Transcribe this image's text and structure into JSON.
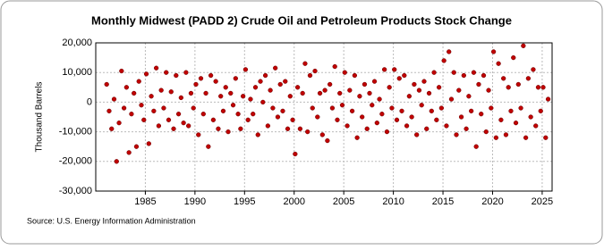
{
  "chart_data": {
    "type": "scatter",
    "title": "Monthly Midwest (PADD 2) Crude Oil and Petroleum Products Stock Change",
    "y_label": "Thousand Barrels",
    "source": "Source: U.S. Energy Information Administration",
    "color": "#c00000",
    "grid": true,
    "xlim": [
      1980,
      2026
    ],
    "xticks": [
      1985,
      1990,
      1995,
      2000,
      2005,
      2010,
      2015,
      2020,
      2025
    ],
    "ylim": [
      -30000,
      20000
    ],
    "yticks": [
      {
        "value": -30000,
        "label": "-30,000"
      },
      {
        "value": -20000,
        "label": "-20,000"
      },
      {
        "value": -10000,
        "label": "-10,000"
      },
      0,
      {
        "value": 10000,
        "label": "10,000"
      },
      {
        "value": 20000,
        "label": "20,000"
      }
    ],
    "x": [
      1981.1,
      1981.35,
      1981.6,
      1981.85,
      1982.1,
      1982.35,
      1982.6,
      1982.85,
      1983.1,
      1983.35,
      1983.6,
      1983.85,
      1984.1,
      1984.35,
      1984.6,
      1984.85,
      1985.1,
      1985.35,
      1985.6,
      1985.85,
      1986.1,
      1986.35,
      1986.6,
      1986.85,
      1987.1,
      1987.35,
      1987.6,
      1987.85,
      1988.1,
      1988.35,
      1988.6,
      1988.85,
      1989.1,
      1989.35,
      1989.6,
      1989.85,
      1990.1,
      1990.35,
      1990.6,
      1990.85,
      1991.1,
      1991.35,
      1991.6,
      1991.85,
      1992.1,
      1992.35,
      1992.6,
      1992.85,
      1993.1,
      1993.35,
      1993.6,
      1993.85,
      1994.1,
      1994.35,
      1994.6,
      1994.85,
      1995.1,
      1995.35,
      1995.6,
      1995.85,
      1996.1,
      1996.35,
      1996.6,
      1996.85,
      1997.1,
      1997.35,
      1997.6,
      1997.85,
      1998.1,
      1998.35,
      1998.6,
      1998.85,
      1999.1,
      1999.35,
      1999.6,
      1999.85,
      2000.1,
      2000.35,
      2000.6,
      2000.85,
      2001.1,
      2001.35,
      2001.6,
      2001.85,
      2002.1,
      2002.35,
      2002.6,
      2002.85,
      2003.1,
      2003.35,
      2003.6,
      2003.85,
      2004.1,
      2004.35,
      2004.6,
      2004.85,
      2005.1,
      2005.35,
      2005.6,
      2005.85,
      2006.1,
      2006.35,
      2006.6,
      2006.85,
      2007.1,
      2007.35,
      2007.6,
      2007.85,
      2008.1,
      2008.35,
      2008.6,
      2008.85,
      2009.1,
      2009.35,
      2009.6,
      2009.85,
      2010.1,
      2010.35,
      2010.6,
      2010.85,
      2011.1,
      2011.35,
      2011.6,
      2011.85,
      2012.1,
      2012.35,
      2012.6,
      2012.85,
      2013.1,
      2013.35,
      2013.6,
      2013.85,
      2014.1,
      2014.35,
      2014.6,
      2014.85,
      2015.1,
      2015.35,
      2015.6,
      2015.85,
      2016.1,
      2016.35,
      2016.6,
      2016.85,
      2017.1,
      2017.35,
      2017.6,
      2017.85,
      2018.1,
      2018.35,
      2018.6,
      2018.85,
      2019.1,
      2019.35,
      2019.6,
      2019.85,
      2020.1,
      2020.35,
      2020.6,
      2020.85,
      2021.1,
      2021.35,
      2021.6,
      2021.85,
      2022.1,
      2022.35,
      2022.6,
      2022.85,
      2023.1,
      2023.35,
      2023.6,
      2023.85,
      2024.1,
      2024.35,
      2024.6,
      2024.85,
      2025.1,
      2025.35,
      2025.6
    ],
    "values": [
      6000,
      -3000,
      -9000,
      1000,
      -20000,
      -7000,
      10500,
      -2000,
      5000,
      -17000,
      -4000,
      3000,
      -15000,
      7000,
      -1000,
      -6000,
      9500,
      -14000,
      2000,
      -3000,
      11500,
      -8000,
      4000,
      -2000,
      10000,
      -6000,
      3500,
      -9000,
      9000,
      -4000,
      1500,
      -7000,
      10000,
      -8000,
      3000,
      -2000,
      6000,
      -11000,
      8000,
      -4000,
      3000,
      -15000,
      9000,
      -6000,
      7000,
      -9000,
      2000,
      -3000,
      5000,
      -10000,
      3000,
      -1000,
      8000,
      -4000,
      -9000,
      2000,
      11000,
      -6000,
      1000,
      -4000,
      5000,
      -11000,
      7000,
      0,
      9000,
      -8000,
      4000,
      -2000,
      11500,
      -5000,
      6000,
      -3000,
      7000,
      -9000,
      2000,
      -6000,
      -17500,
      5000,
      -9000,
      3000,
      13000,
      -10000,
      9000,
      -2000,
      10500,
      -5000,
      3000,
      -11000,
      4000,
      -13000,
      6000,
      -2000,
      12000,
      -6000,
      3000,
      -1000,
      10000,
      -8000,
      4000,
      -3000,
      9000,
      -12000,
      2000,
      -5000,
      6000,
      -9000,
      3000,
      -1000,
      7000,
      -7000,
      1000,
      -4000,
      11000,
      -10000,
      5000,
      -2000,
      11000,
      -6000,
      8000,
      -3000,
      9000,
      -8000,
      2000,
      -5000,
      6000,
      -11000,
      4000,
      -1000,
      7000,
      -9000,
      3000,
      -3000,
      10000,
      -6000,
      5000,
      -2000,
      14000,
      -8000,
      17000,
      1000,
      10000,
      -11000,
      4000,
      -5000,
      9000,
      -9000,
      2000,
      -3000,
      10000,
      -15000,
      6000,
      -4000,
      9000,
      -10000,
      4000,
      -2000,
      17000,
      -12000,
      13000,
      -6000,
      8000,
      -11000,
      5000,
      -3000,
      15000,
      -7000,
      6000,
      -2000,
      19000,
      -12000,
      8000,
      -5000,
      11000,
      -8000,
      5000,
      -3000,
      5000,
      -12000,
      1000
    ]
  }
}
